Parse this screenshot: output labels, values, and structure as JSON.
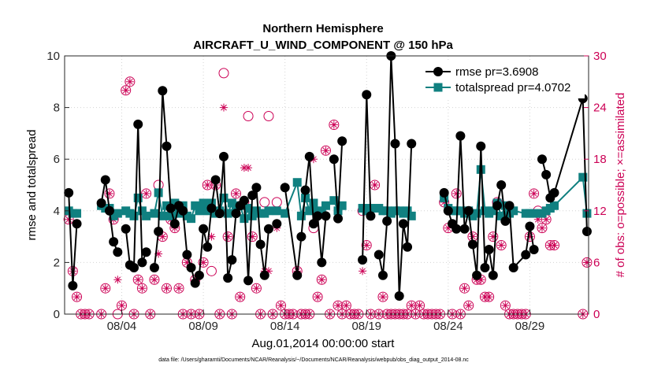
{
  "chart_data": {
    "type": "line",
    "title": "Northern Hemisphere",
    "subtitle": "AIRCRAFT_U_WIND_COMPONENT @ 150 hPa",
    "xlabel": "Aug.01,2014 00:00:00 start",
    "ylabel_left": "rmse and totalspread",
    "ylabel_right": "# of obs: o=possible; ×=assimilated",
    "footnote": "data file: /Users/gharamti/Documents/NCAR/Reanalysis/~/Documents/NCAR/Reanalysis/webpub/obs_diag_output_2014-08.nc",
    "xlim": [
      0.5,
      32.6
    ],
    "ylim_left": [
      0,
      10
    ],
    "ylim_right": [
      0,
      30
    ],
    "x_ticks": [
      {
        "value": 4,
        "label": "08/04"
      },
      {
        "value": 9,
        "label": "08/09"
      },
      {
        "value": 14,
        "label": "08/14"
      },
      {
        "value": 19,
        "label": "08/19"
      },
      {
        "value": 24,
        "label": "08/24"
      },
      {
        "value": 29,
        "label": "08/29"
      }
    ],
    "y_ticks_left": [
      0,
      2,
      4,
      6,
      8,
      10
    ],
    "y_ticks_right": [
      0,
      6,
      12,
      18,
      24,
      30
    ],
    "colors": {
      "rmse": "#000000",
      "spread": "#108080",
      "obs": "#cc0055"
    },
    "legend": {
      "position": "top-right",
      "entries": [
        "rmse pr=3.6908",
        "totalspread pr=4.0702"
      ]
    },
    "series": [
      {
        "name": "rmse pr=3.6908",
        "x": [
          0.75,
          1.0,
          1.25,
          1.5,
          2.75,
          3.0,
          3.25,
          3.5,
          3.75,
          4.0,
          4.25,
          4.5,
          4.75,
          5.0,
          5.25,
          5.5,
          5.75,
          6.0,
          6.25,
          6.5,
          6.75,
          7.0,
          7.25,
          7.5,
          7.75,
          8.0,
          8.25,
          8.5,
          8.75,
          9.0,
          9.25,
          9.5,
          9.75,
          10.0,
          10.25,
          10.5,
          10.75,
          11.0,
          11.25,
          11.5,
          11.75,
          12.0,
          12.25,
          12.5,
          12.75,
          13.0,
          13.25,
          13.5,
          13.75,
          14.0,
          14.75,
          15.0,
          15.25,
          15.5,
          15.75,
          16.0,
          16.25,
          16.5,
          16.75,
          17.0,
          17.25,
          17.5,
          17.75,
          18.0,
          18.75,
          19.0,
          19.25,
          19.5,
          19.75,
          20.0,
          20.25,
          20.5,
          20.75,
          21.0,
          21.25,
          21.5,
          21.75,
          22.0,
          22.25,
          22.5,
          23.75,
          24.0,
          24.25,
          24.5,
          24.75,
          25.0,
          25.25,
          25.5,
          25.75,
          26.0,
          26.25,
          26.5,
          26.75,
          27.0,
          27.25,
          27.5,
          27.75,
          28.0,
          28.75,
          29.0,
          29.25,
          29.5,
          29.75,
          30.0,
          30.25,
          30.5,
          32.25,
          32.5
        ],
        "values": [
          4.7,
          1.1,
          3.5,
          null,
          4.3,
          5.2,
          4.0,
          2.8,
          2.4,
          null,
          3.3,
          1.9,
          1.8,
          7.35,
          2.0,
          2.4,
          null,
          1.8,
          3.2,
          8.65,
          6.5,
          4.1,
          3.5,
          4.2,
          4.0,
          2.3,
          1.8,
          1.2,
          1.5,
          3.3,
          2.6,
          4.1,
          5.2,
          3.9,
          6.1,
          1.4,
          2.1,
          3.9,
          4.2,
          4.4,
          1.3,
          4.6,
          4.9,
          2.7,
          1.5,
          3.3,
          null,
          3.5,
          null,
          4.9,
          1.5,
          3.0,
          4.8,
          6.1,
          3.5,
          3.8,
          2.0,
          3.8,
          null,
          6.0,
          3.7,
          6.7,
          null,
          null,
          2.1,
          8.5,
          3.8,
          null,
          2.3,
          1.5,
          3.6,
          10.0,
          6.6,
          0.7,
          3.5,
          2.6,
          6.6,
          null,
          null,
          null,
          4.7,
          4.0,
          3.5,
          3.3,
          6.9,
          3.3,
          4.0,
          2.7,
          1.5,
          6.5,
          1.8,
          2.5,
          1.5,
          4.2,
          5.0,
          3.6,
          4.2,
          1.8,
          2.3,
          3.4,
          2.5,
          null,
          6.0,
          5.4,
          4.5,
          4.7,
          8.35,
          3.2
        ]
      },
      {
        "name": "totalspread pr=4.0702",
        "x": [
          0.75,
          1.0,
          1.25,
          1.5,
          2.75,
          3.0,
          3.25,
          3.5,
          3.75,
          4.0,
          4.25,
          4.5,
          4.75,
          5.0,
          5.25,
          5.5,
          5.75,
          6.0,
          6.25,
          6.5,
          6.75,
          7.0,
          7.25,
          7.5,
          7.75,
          8.0,
          8.25,
          8.5,
          8.75,
          9.0,
          9.25,
          9.5,
          9.75,
          10.0,
          10.25,
          10.5,
          10.75,
          11.0,
          11.25,
          11.5,
          11.75,
          12.0,
          12.25,
          12.5,
          12.75,
          13.0,
          13.25,
          13.5,
          13.75,
          14.0,
          14.75,
          15.0,
          15.25,
          15.5,
          15.75,
          16.0,
          16.25,
          16.5,
          16.75,
          17.0,
          17.25,
          17.5,
          17.75,
          18.0,
          18.75,
          19.0,
          19.25,
          19.5,
          19.75,
          20.0,
          20.25,
          20.5,
          20.75,
          21.0,
          21.25,
          21.5,
          21.75,
          22.0,
          22.25,
          22.5,
          23.75,
          24.0,
          24.25,
          24.5,
          24.75,
          25.0,
          25.25,
          25.5,
          25.75,
          26.0,
          26.25,
          26.5,
          26.75,
          27.0,
          27.25,
          27.5,
          27.75,
          28.0,
          28.75,
          29.0,
          29.25,
          29.5,
          29.75,
          30.0,
          30.25,
          30.5,
          32.25,
          32.5
        ],
        "values": [
          4.0,
          3.9,
          3.9,
          null,
          4.2,
          4.1,
          4.1,
          3.8,
          3.9,
          null,
          4.0,
          3.9,
          3.8,
          4.5,
          4.0,
          3.8,
          null,
          3.9,
          4.7,
          3.8,
          4.2,
          3.8,
          4.3,
          3.9,
          4.2,
          3.8,
          3.7,
          4.2,
          4.0,
          4.3,
          4.0,
          4.3,
          3.9,
          4.0,
          4.5,
          3.9,
          4.3,
          4.0,
          4.2,
          3.7,
          4.1,
          3.8,
          4.0,
          3.9,
          3.9,
          4.0,
          null,
          4.0,
          null,
          3.9,
          5.1,
          3.8,
          4.5,
          4.0,
          4.3,
          4.0,
          3.9,
          4.2,
          null,
          4.4,
          4.0,
          4.2,
          null,
          null,
          4.1,
          4.0,
          4.1,
          null,
          4.1,
          4.0,
          4.0,
          3.9,
          4.0,
          4.0,
          3.9,
          4.0,
          3.8,
          null,
          null,
          null,
          4.5,
          4.1,
          4.0,
          4.0,
          4.0,
          3.9,
          4.0,
          3.8,
          3.9,
          5.6,
          4.0,
          3.9,
          4.0,
          4.3,
          3.8,
          4.2,
          3.9,
          4.0,
          3.9,
          3.9,
          3.9,
          null,
          3.9,
          4.0,
          4.1,
          4.2,
          5.3,
          3.9
        ]
      },
      {
        "name": "obs-possible",
        "x": [
          0.75,
          1.0,
          1.25,
          1.5,
          1.75,
          2.0,
          2.75,
          3.0,
          3.25,
          3.5,
          3.75,
          4.0,
          4.25,
          4.5,
          4.75,
          5.0,
          5.25,
          5.5,
          5.75,
          6.0,
          6.25,
          6.5,
          6.75,
          7.0,
          7.25,
          7.5,
          7.75,
          8.0,
          8.25,
          8.5,
          8.75,
          9.0,
          9.25,
          9.5,
          9.75,
          10.0,
          10.25,
          10.5,
          10.75,
          11.0,
          11.25,
          11.5,
          11.75,
          12.0,
          12.25,
          12.5,
          12.75,
          13.0,
          13.25,
          13.5,
          13.75,
          14.0,
          14.25,
          14.5,
          14.75,
          15.0,
          15.25,
          15.5,
          15.75,
          16.0,
          16.25,
          16.5,
          16.75,
          17.0,
          17.25,
          17.5,
          17.75,
          18.0,
          18.25,
          18.5,
          18.75,
          19.0,
          19.25,
          19.5,
          19.75,
          20.0,
          20.25,
          20.5,
          20.75,
          21.0,
          21.25,
          21.5,
          21.75,
          22.0,
          22.25,
          22.5,
          22.75,
          23.0,
          23.25,
          23.5,
          23.75,
          24.0,
          24.25,
          24.5,
          24.75,
          25.0,
          25.25,
          25.5,
          25.75,
          26.0,
          26.25,
          26.5,
          26.75,
          27.0,
          27.25,
          27.5,
          27.75,
          28.0,
          28.25,
          28.5,
          28.75,
          29.0,
          29.25,
          29.5,
          29.75,
          30.0,
          30.25,
          30.5,
          32.25,
          32.5
        ],
        "values": [
          11,
          5,
          2,
          0,
          0,
          0,
          0,
          3,
          14,
          11,
          0,
          1,
          26,
          27,
          0,
          4,
          3,
          14,
          0,
          4,
          15,
          9,
          3,
          11,
          10,
          3,
          0,
          6,
          0,
          4,
          0,
          6,
          15,
          5,
          15,
          0,
          28,
          9,
          0,
          14,
          2,
          13,
          23,
          9,
          3,
          0,
          13,
          23,
          0,
          13,
          1,
          0,
          0,
          0,
          5,
          0,
          0,
          0,
          10,
          2,
          4,
          19,
          0,
          22,
          1,
          0,
          1,
          0,
          0,
          0,
          12,
          8,
          0,
          15,
          0,
          2,
          0,
          0,
          0,
          0,
          0,
          0,
          1,
          0,
          1,
          0,
          0,
          0,
          0,
          0,
          13,
          10,
          0,
          14,
          0,
          3,
          1,
          9,
          4,
          4,
          2,
          2,
          9,
          13,
          8,
          1,
          0,
          0,
          0,
          0,
          0,
          9,
          14,
          12,
          10,
          11,
          8,
          8,
          0,
          6
        ]
      },
      {
        "name": "obs-assimilated",
        "x": [
          0.75,
          1.0,
          1.25,
          1.5,
          1.75,
          2.0,
          2.75,
          3.0,
          3.25,
          3.5,
          3.75,
          4.0,
          4.25,
          4.5,
          4.75,
          5.0,
          5.25,
          5.5,
          5.75,
          6.0,
          6.25,
          6.5,
          6.75,
          7.0,
          7.25,
          7.5,
          7.75,
          8.0,
          8.25,
          8.5,
          8.75,
          9.0,
          9.25,
          9.5,
          9.75,
          10.0,
          10.25,
          10.5,
          10.75,
          11.0,
          11.25,
          11.5,
          11.75,
          12.0,
          12.25,
          12.5,
          12.75,
          13.0,
          13.25,
          13.5,
          13.75,
          14.0,
          14.25,
          14.5,
          14.75,
          15.0,
          15.25,
          15.5,
          15.75,
          16.0,
          16.25,
          16.5,
          16.75,
          17.0,
          17.25,
          17.5,
          17.75,
          18.0,
          18.25,
          18.5,
          18.75,
          19.0,
          19.25,
          19.5,
          19.75,
          20.0,
          20.25,
          20.5,
          20.75,
          21.0,
          21.25,
          21.5,
          21.75,
          22.0,
          22.25,
          22.5,
          22.75,
          23.0,
          23.25,
          23.5,
          23.75,
          24.0,
          24.25,
          24.5,
          24.75,
          25.0,
          25.25,
          25.5,
          25.75,
          26.0,
          26.25,
          26.5,
          26.75,
          27.0,
          27.25,
          27.5,
          27.75,
          28.0,
          28.25,
          28.5,
          28.75,
          29.0,
          29.25,
          29.5,
          29.75,
          30.0,
          30.25,
          30.5,
          32.25,
          32.5
        ],
        "values": [
          11,
          5,
          2,
          0,
          0,
          0,
          0,
          3,
          14,
          11,
          4,
          1,
          26,
          27,
          0,
          4,
          3,
          14,
          0,
          4,
          7,
          9,
          3,
          11,
          10,
          3,
          0,
          6,
          0,
          4,
          0,
          6,
          15,
          9,
          15,
          0,
          24,
          9,
          0,
          14,
          2,
          17,
          17,
          9,
          3,
          0,
          5,
          5,
          0,
          10,
          1,
          0,
          0,
          0,
          5,
          0,
          0,
          0,
          18,
          2,
          4,
          19,
          0,
          22,
          1,
          0,
          1,
          0,
          0,
          0,
          5,
          8,
          0,
          15,
          0,
          2,
          0,
          0,
          0,
          0,
          0,
          0,
          1,
          0,
          1,
          0,
          0,
          0,
          0,
          0,
          13,
          10,
          0,
          14,
          0,
          3,
          1,
          9,
          4,
          4,
          2,
          2,
          9,
          13,
          8,
          1,
          0,
          0,
          0,
          0,
          0,
          9,
          14,
          11,
          10,
          11,
          8,
          8,
          0,
          6
        ]
      }
    ]
  }
}
